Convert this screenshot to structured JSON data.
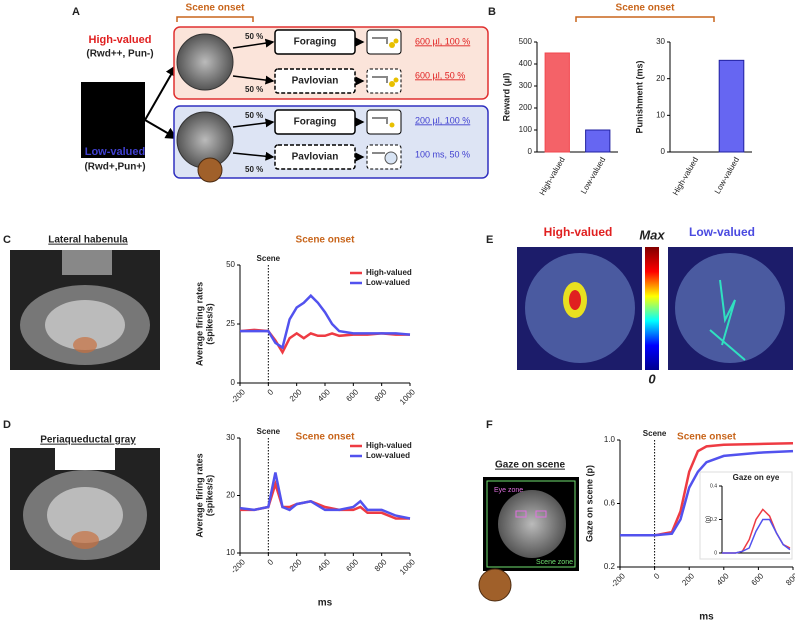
{
  "panel_labels": [
    "A",
    "B",
    "C",
    "D",
    "E",
    "F"
  ],
  "diagram": {
    "onset": "Scene onset",
    "high": {
      "label": "High-valued",
      "sub": "(Rwd++, Pun-)"
    },
    "low": {
      "label": "Low-valued",
      "sub": "(Rwd+,Pun+)"
    },
    "prob": [
      "50 %",
      "50 %",
      "50 %",
      "50 %"
    ],
    "tasks": [
      "Foraging",
      "Pavlovian",
      "Foraging",
      "Pavlovian"
    ],
    "outcomes": [
      "600 µl, 100 %",
      "600 µl, 50 %",
      "200 µl, 100 %",
      "100 ms, 50 %"
    ]
  },
  "bar_onset": "Scene onset",
  "images": {
    "c": "Lateral habenula",
    "d": "Periaqueductal gray",
    "e_high": "High-valued",
    "e_low": "Low-valued",
    "e_max": "Max",
    "e_min": "0",
    "f": "Gaze on scene",
    "f_eye": "Eye zone",
    "f_scene": "Scene zone"
  },
  "chart_data": [
    {
      "type": "bar",
      "ylabel": "Reward (µl)",
      "categories": [
        "High-valued",
        "Low-valued"
      ],
      "values": [
        450,
        100
      ],
      "colors": [
        "#f2474e",
        "#4b4bf0"
      ],
      "ylim": [
        0,
        500
      ],
      "yticks": [
        0,
        100,
        200,
        300,
        400,
        500
      ]
    },
    {
      "type": "bar",
      "ylabel": "Punishment (ms)",
      "categories": [
        "High-valued",
        "Low-valued"
      ],
      "values": [
        0,
        25
      ],
      "colors": [
        "#f2474e",
        "#4b4bf0"
      ],
      "ylim": [
        0,
        30
      ],
      "yticks": [
        0,
        10,
        20,
        30
      ]
    },
    {
      "type": "line",
      "title": "Scene onset",
      "ylabel": [
        "Average firing rates",
        "(spikes/s)"
      ],
      "x": [
        -200,
        -100,
        0,
        50,
        100,
        150,
        200,
        250,
        300,
        350,
        400,
        450,
        500,
        600,
        700,
        800,
        900,
        1000
      ],
      "series": [
        {
          "name": "High-valued",
          "color": "#ee3b43",
          "values": [
            22,
            22.5,
            22,
            18,
            13,
            19,
            21,
            19,
            21,
            20,
            20,
            21,
            20,
            20.5,
            20.5,
            21,
            20.5,
            20.5
          ]
        },
        {
          "name": "Low-valued",
          "color": "#5252ee",
          "values": [
            22,
            22,
            22,
            17,
            15,
            27,
            32,
            34,
            37,
            34,
            30,
            25,
            22,
            21,
            21,
            21,
            21,
            20.5
          ]
        }
      ],
      "xlim": [
        -200,
        1000
      ],
      "xticks": [
        -200,
        0,
        200,
        400,
        600,
        800,
        1000
      ],
      "ylim": [
        0,
        50
      ],
      "yticks": [
        0,
        25,
        50
      ],
      "annotation": {
        "text": "Scene",
        "x": 0
      },
      "legend": "upper right"
    },
    {
      "type": "line",
      "title": "Scene onset",
      "ylabel": [
        "Average firing rates",
        "(spikes/s)"
      ],
      "xlabel": "ms",
      "x": [
        -200,
        -100,
        0,
        50,
        100,
        150,
        200,
        300,
        400,
        500,
        600,
        650,
        700,
        800,
        900,
        1000
      ],
      "series": [
        {
          "name": "High-valued",
          "color": "#ee3b43",
          "values": [
            17.5,
            17.5,
            18,
            22,
            18,
            18,
            18.5,
            19,
            18,
            17.5,
            17.5,
            18,
            17,
            17,
            16,
            16
          ]
        },
        {
          "name": "Low-valued",
          "color": "#5252ee",
          "values": [
            17.8,
            17.5,
            18,
            24,
            18,
            17.5,
            18.5,
            19,
            17.5,
            17.5,
            18,
            19,
            17.5,
            17.5,
            16.5,
            16
          ]
        }
      ],
      "xlim": [
        -200,
        1000
      ],
      "xticks": [
        -200,
        0,
        200,
        400,
        600,
        800,
        1000
      ],
      "ylim": [
        10,
        30
      ],
      "yticks": [
        10,
        20,
        30
      ],
      "annotation": {
        "text": "Scene",
        "x": 0
      },
      "legend": "upper right"
    },
    {
      "type": "line",
      "title": "Scene onset",
      "ylabel": [
        "Gaze on scene (p)"
      ],
      "xlabel": "ms",
      "x": [
        -200,
        0,
        100,
        150,
        200,
        250,
        300,
        400,
        600,
        800
      ],
      "series": [
        {
          "name": "High-valued",
          "color": "#ee3b43",
          "values": [
            0.4,
            0.4,
            0.42,
            0.55,
            0.8,
            0.93,
            0.96,
            0.97,
            0.975,
            0.98
          ]
        },
        {
          "name": "Low-valued",
          "color": "#5252ee",
          "values": [
            0.4,
            0.4,
            0.41,
            0.5,
            0.7,
            0.8,
            0.86,
            0.9,
            0.92,
            0.93
          ]
        }
      ],
      "xlim": [
        -200,
        800
      ],
      "xticks": [
        -200,
        0,
        200,
        400,
        600,
        800
      ],
      "ylim": [
        0.2,
        1.0
      ],
      "yticks": [
        0.2,
        0.6,
        {
          "value": 1,
          "label": "1.0"
        }
      ],
      "annotation": {
        "text": "Scene",
        "x": 0
      }
    },
    {
      "type": "line",
      "title": "Gaze on eye",
      "ylabel": [
        "(p)"
      ],
      "x": [
        -200,
        0,
        100,
        200,
        300,
        400,
        500,
        600,
        700,
        800
      ],
      "series": [
        {
          "name": "High-valued",
          "color": "#ee3b43",
          "values": [
            0,
            0,
            0.01,
            0.08,
            0.2,
            0.26,
            0.22,
            0.12,
            0.05,
            0.03
          ]
        },
        {
          "name": "Low-valued",
          "color": "#5252ee",
          "values": [
            0,
            0,
            0.01,
            0.03,
            0.13,
            0.2,
            0.2,
            0.12,
            0.05,
            0.02
          ]
        }
      ],
      "xlim": [
        -200,
        800
      ],
      "ylim": [
        0,
        0.4
      ],
      "yticks": [
        0,
        0.2,
        0.4
      ]
    }
  ]
}
